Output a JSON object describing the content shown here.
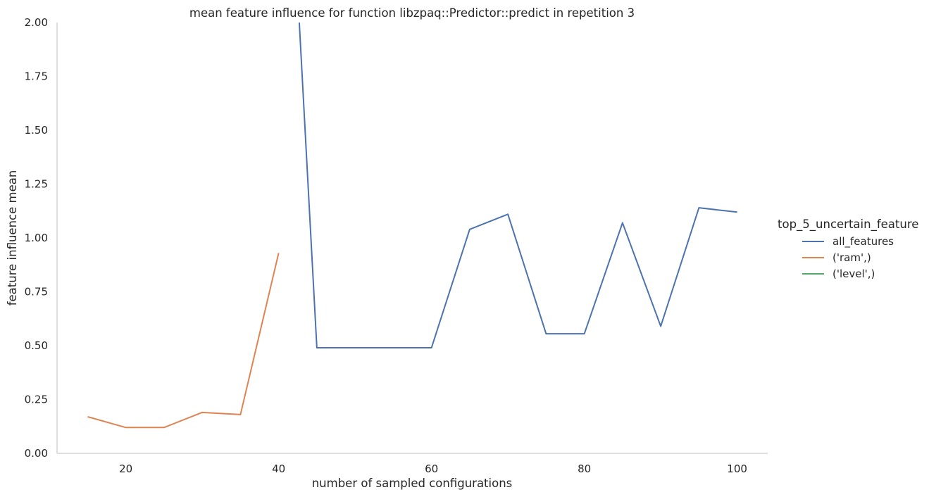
{
  "chart_data": {
    "type": "line",
    "title": "mean feature influence for function libzpaq::Predictor::predict in repetition 3",
    "xlabel": "number of sampled configurations",
    "ylabel": "feature influence mean",
    "xlim": [
      11,
      104
    ],
    "ylim": [
      0,
      2.0
    ],
    "x_ticks": [
      20,
      40,
      60,
      80,
      100
    ],
    "y_ticks": [
      0.0,
      0.25,
      0.5,
      0.75,
      1.0,
      1.25,
      1.5,
      1.75,
      2.0
    ],
    "x_tick_labels": [
      "20",
      "40",
      "60",
      "80",
      "100"
    ],
    "y_tick_labels": [
      "0.00",
      "0.25",
      "0.50",
      "0.75",
      "1.00",
      "1.25",
      "1.50",
      "1.75",
      "2.00"
    ],
    "grid": false,
    "legend": {
      "title": "top_5_uncertain_feature",
      "placement": "right"
    },
    "series": [
      {
        "name": "all_features",
        "color": "#4c72b0",
        "points": [
          [
            42.7,
            2.0
          ],
          [
            45,
            0.49
          ],
          [
            50,
            0.49
          ],
          [
            55,
            0.49
          ],
          [
            60,
            0.49
          ],
          [
            65,
            1.04
          ],
          [
            70,
            1.11
          ],
          [
            75,
            0.555
          ],
          [
            80,
            0.555
          ],
          [
            85,
            1.07
          ],
          [
            90,
            0.59
          ],
          [
            95,
            1.14
          ],
          [
            100,
            1.12
          ]
        ]
      },
      {
        "name": "('ram',)",
        "color": "#dd8452",
        "points": [
          [
            15,
            0.17
          ],
          [
            20,
            0.12
          ],
          [
            25,
            0.12
          ],
          [
            30,
            0.19
          ],
          [
            35,
            0.18
          ],
          [
            40,
            0.93
          ]
        ]
      },
      {
        "name": "('level',)",
        "color": "#55a868",
        "points": []
      }
    ]
  }
}
